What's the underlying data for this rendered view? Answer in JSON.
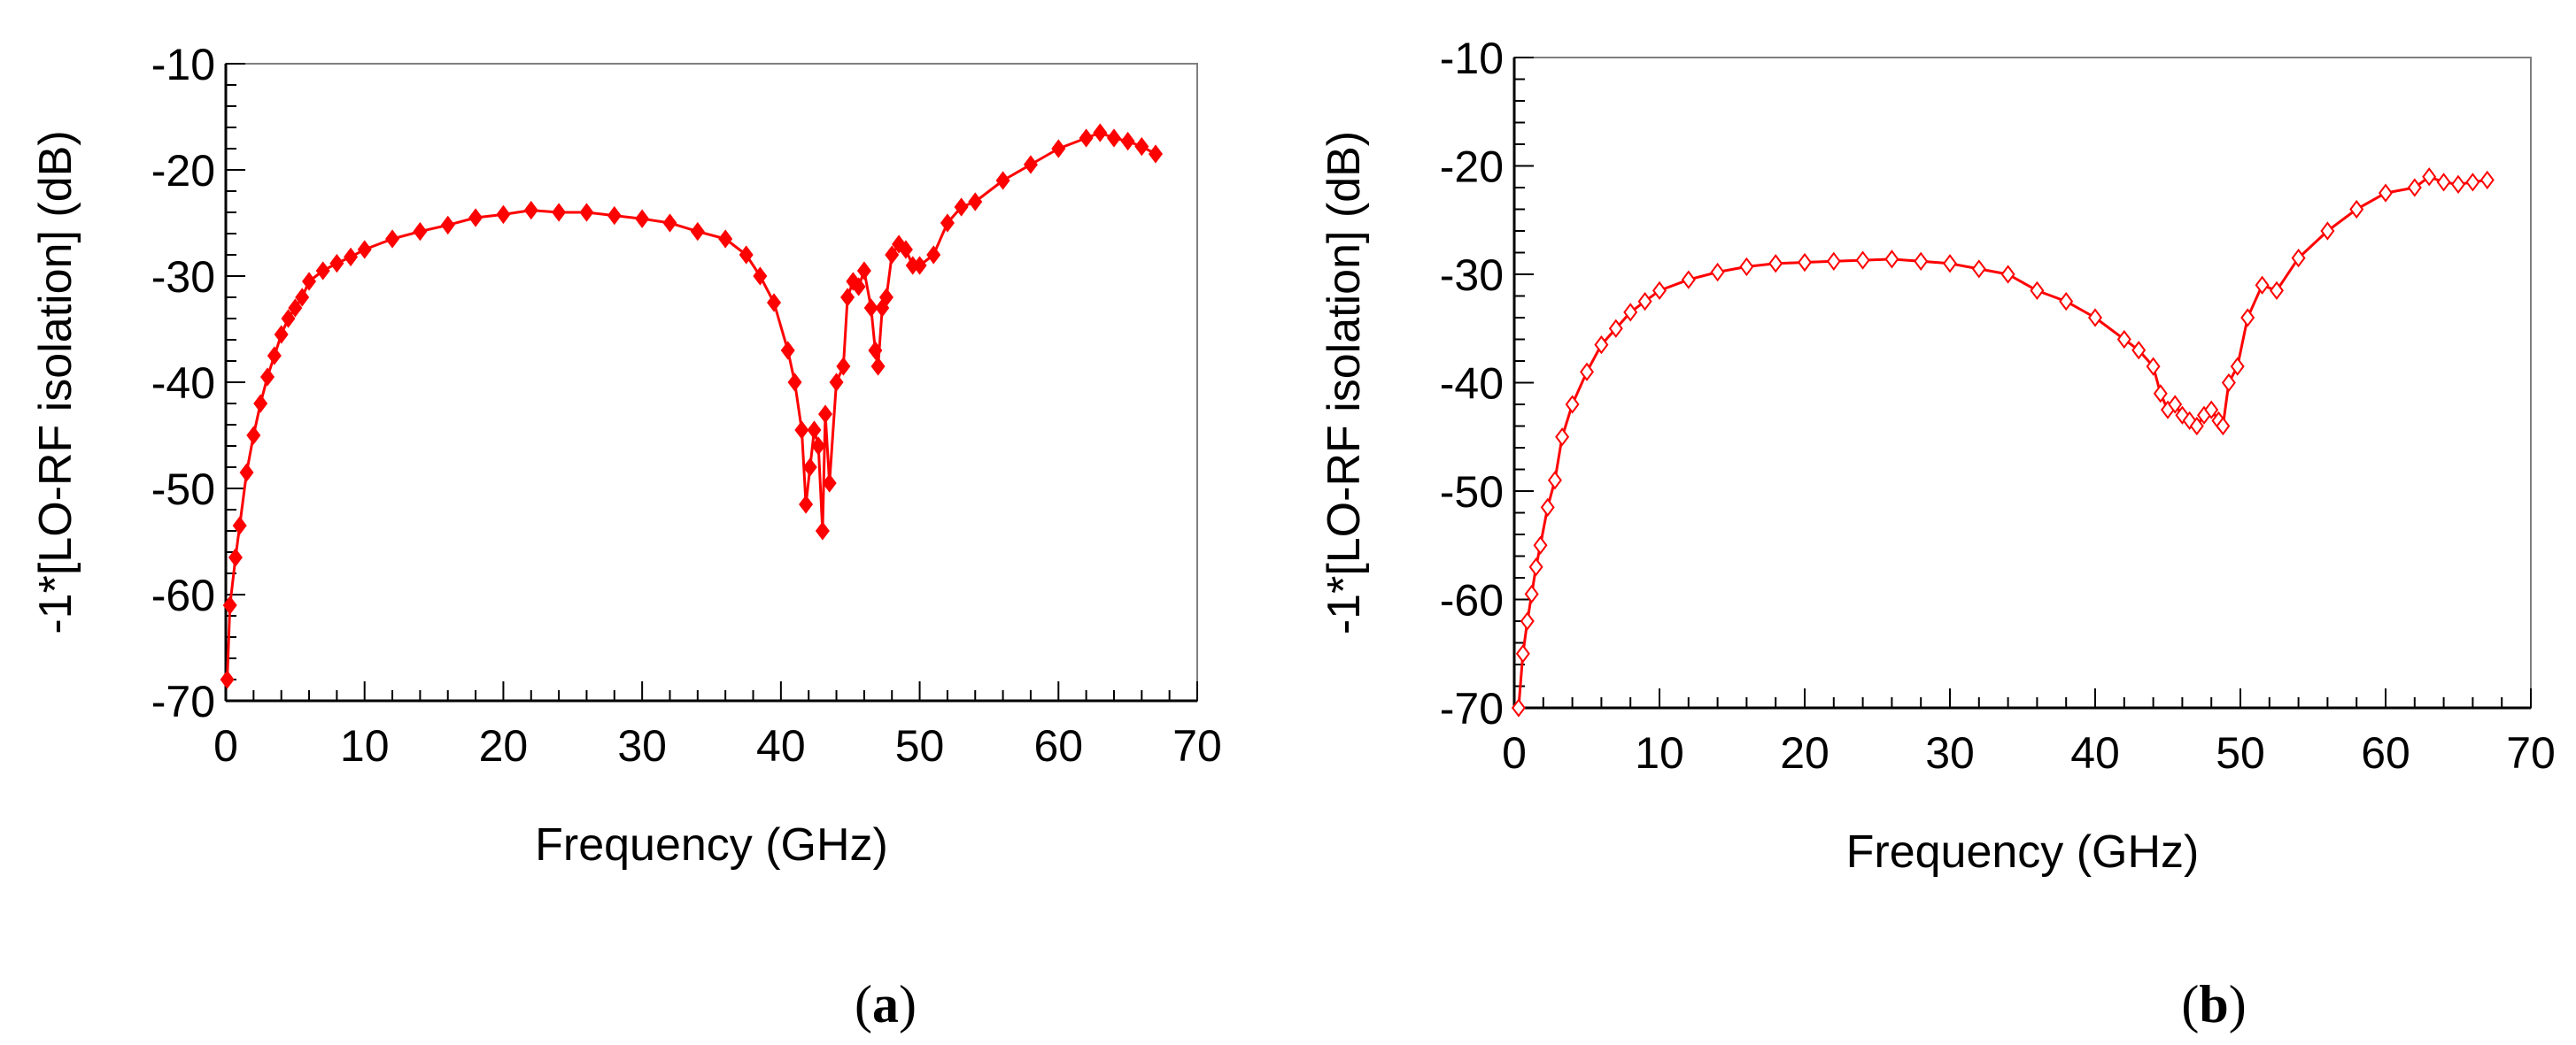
{
  "chart_data": [
    {
      "type": "line",
      "panel_label": {
        "open": "(",
        "letter": "a",
        "close": ")"
      },
      "xlabel": "Frequency (GHz)",
      "ylabel": "-1*[LO-RF isolation] (dB)",
      "xlim": [
        0,
        70
      ],
      "ylim": [
        -70,
        -10
      ],
      "x_ticks": [
        0,
        10,
        20,
        30,
        40,
        50,
        60,
        70
      ],
      "y_ticks": [
        -70,
        -60,
        -50,
        -40,
        -30,
        -20,
        -10
      ],
      "x_tick_labels": [
        "0",
        "10",
        "20",
        "30",
        "40",
        "50",
        "60",
        "70"
      ],
      "y_tick_labels": [
        "-70",
        "-60",
        "-50",
        "-40",
        "-30",
        "-20",
        "-10"
      ],
      "grid": false,
      "series": [
        {
          "name": "LO-RF isolation",
          "color": "#ff0000",
          "marker": "diamond",
          "points": [
            [
              0.1,
              -68
            ],
            [
              0.3,
              -61
            ],
            [
              0.7,
              -56.5
            ],
            [
              1.0,
              -53.5
            ],
            [
              1.5,
              -48.5
            ],
            [
              2.0,
              -45
            ],
            [
              2.5,
              -42
            ],
            [
              3.0,
              -39.5
            ],
            [
              3.5,
              -37.5
            ],
            [
              4.0,
              -35.5
            ],
            [
              4.5,
              -34
            ],
            [
              5.0,
              -33
            ],
            [
              5.5,
              -32
            ],
            [
              6.0,
              -30.5
            ],
            [
              7.0,
              -29.5
            ],
            [
              8.0,
              -28.8
            ],
            [
              9.0,
              -28.2
            ],
            [
              10.0,
              -27.5
            ],
            [
              12.0,
              -26.5
            ],
            [
              14.0,
              -25.8
            ],
            [
              16.0,
              -25.2
            ],
            [
              18.0,
              -24.5
            ],
            [
              20.0,
              -24.2
            ],
            [
              22.0,
              -23.8
            ],
            [
              24.0,
              -24
            ],
            [
              26.0,
              -24
            ],
            [
              28.0,
              -24.3
            ],
            [
              30.0,
              -24.6
            ],
            [
              32.0,
              -25
            ],
            [
              34.0,
              -25.8
            ],
            [
              36.0,
              -26.5
            ],
            [
              37.5,
              -28
            ],
            [
              38.5,
              -30
            ],
            [
              39.5,
              -32.5
            ],
            [
              40.5,
              -37
            ],
            [
              41.0,
              -40
            ],
            [
              41.5,
              -44.5
            ],
            [
              41.8,
              -51.5
            ],
            [
              42.1,
              -48
            ],
            [
              42.4,
              -44.5
            ],
            [
              42.7,
              -46
            ],
            [
              43.0,
              -54
            ],
            [
              43.2,
              -43
            ],
            [
              43.5,
              -49.5
            ],
            [
              44.0,
              -40
            ],
            [
              44.5,
              -38.5
            ],
            [
              44.8,
              -32
            ],
            [
              45.2,
              -30.5
            ],
            [
              45.6,
              -31
            ],
            [
              46.0,
              -29.5
            ],
            [
              46.5,
              -33
            ],
            [
              46.8,
              -37
            ],
            [
              47.0,
              -38.5
            ],
            [
              47.3,
              -33
            ],
            [
              47.6,
              -32
            ],
            [
              48.0,
              -28
            ],
            [
              48.5,
              -27
            ],
            [
              49.0,
              -27.5
            ],
            [
              49.5,
              -29
            ],
            [
              50.0,
              -29
            ],
            [
              51.0,
              -28
            ],
            [
              52.0,
              -25
            ],
            [
              53.0,
              -23.5
            ],
            [
              54.0,
              -23
            ],
            [
              56.0,
              -21
            ],
            [
              58.0,
              -19.5
            ],
            [
              60.0,
              -18
            ],
            [
              62.0,
              -17
            ],
            [
              63.0,
              -16.5
            ],
            [
              64.0,
              -17
            ],
            [
              65.0,
              -17.3
            ],
            [
              66.0,
              -17.8
            ],
            [
              67.0,
              -18.5
            ]
          ]
        }
      ]
    },
    {
      "type": "line",
      "panel_label": {
        "open": "(",
        "letter": "b",
        "close": ")"
      },
      "xlabel": "Frequency (GHz)",
      "ylabel": "-1*[LO-RF isolation] (dB)",
      "xlim": [
        0,
        70
      ],
      "ylim": [
        -70,
        -10
      ],
      "x_ticks": [
        0,
        10,
        20,
        30,
        40,
        50,
        60,
        70
      ],
      "y_ticks": [
        -70,
        -60,
        -50,
        -40,
        -30,
        -20,
        -10
      ],
      "x_tick_labels": [
        "0",
        "10",
        "20",
        "30",
        "40",
        "50",
        "60",
        "70"
      ],
      "y_tick_labels": [
        "-70",
        "-60",
        "-50",
        "-40",
        "-30",
        "-20",
        "-10"
      ],
      "grid": false,
      "series": [
        {
          "name": "LO-RF isolation",
          "color": "#ff0000",
          "marker": "diamond-open",
          "points": [
            [
              0.3,
              -70
            ],
            [
              0.6,
              -65
            ],
            [
              0.9,
              -62
            ],
            [
              1.2,
              -59.5
            ],
            [
              1.5,
              -57
            ],
            [
              1.8,
              -55
            ],
            [
              2.3,
              -51.5
            ],
            [
              2.8,
              -49
            ],
            [
              3.3,
              -45
            ],
            [
              4.0,
              -42
            ],
            [
              5.0,
              -39
            ],
            [
              6.0,
              -36.5
            ],
            [
              7.0,
              -35
            ],
            [
              8.0,
              -33.5
            ],
            [
              9.0,
              -32.5
            ],
            [
              10.0,
              -31.5
            ],
            [
              12.0,
              -30.5
            ],
            [
              14.0,
              -29.8
            ],
            [
              16.0,
              -29.3
            ],
            [
              18.0,
              -29
            ],
            [
              20.0,
              -28.9
            ],
            [
              22.0,
              -28.8
            ],
            [
              24.0,
              -28.7
            ],
            [
              26.0,
              -28.6
            ],
            [
              28.0,
              -28.8
            ],
            [
              30.0,
              -29
            ],
            [
              32.0,
              -29.5
            ],
            [
              34.0,
              -30
            ],
            [
              36.0,
              -31.5
            ],
            [
              38.0,
              -32.5
            ],
            [
              40.0,
              -34
            ],
            [
              42.0,
              -36
            ],
            [
              43.0,
              -37
            ],
            [
              44.0,
              -38.5
            ],
            [
              44.5,
              -41
            ],
            [
              45.0,
              -42.5
            ],
            [
              45.5,
              -42
            ],
            [
              46.0,
              -43
            ],
            [
              46.5,
              -43.5
            ],
            [
              47.0,
              -44
            ],
            [
              47.5,
              -43
            ],
            [
              48.0,
              -42.5
            ],
            [
              48.5,
              -43.5
            ],
            [
              48.8,
              -44
            ],
            [
              49.2,
              -40
            ],
            [
              49.8,
              -38.5
            ],
            [
              50.5,
              -34
            ],
            [
              51.5,
              -31
            ],
            [
              52.5,
              -31.5
            ],
            [
              54.0,
              -28.5
            ],
            [
              56.0,
              -26
            ],
            [
              58.0,
              -24
            ],
            [
              60.0,
              -22.5
            ],
            [
              62.0,
              -22
            ],
            [
              63.0,
              -21
            ],
            [
              64.0,
              -21.5
            ],
            [
              65.0,
              -21.7
            ],
            [
              66.0,
              -21.5
            ],
            [
              67.0,
              -21.3
            ]
          ]
        }
      ]
    }
  ]
}
